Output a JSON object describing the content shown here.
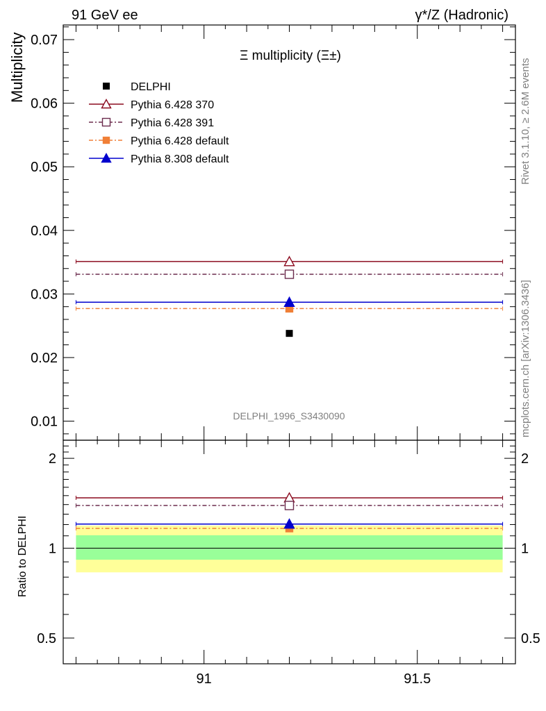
{
  "header": {
    "left": "91 GeV ee",
    "right": "γ*/Z (Hadronic)"
  },
  "side_text": {
    "rivet": "Rivet 3.1.10, ≥ 2.6M events",
    "mcplots": "mcplots.cern.ch [arXiv:1306.3436]"
  },
  "chart_data": {
    "type": "scatter",
    "title": "Ξ multiplicity (Ξ±)",
    "analysis_label": "DELPHI_1996_S3430090",
    "ylabel": "Multiplicity",
    "ratio_ylabel": "Ratio to DELPHI",
    "xlim": [
      90.67,
      91.73
    ],
    "ylim": [
      0.007,
      0.0723
    ],
    "ratio_ylim": [
      0.41,
      2.3
    ],
    "x_bin": [
      90.7,
      91.7
    ],
    "x_ticks": [
      {
        "v": 91,
        "label": "91"
      },
      {
        "v": 91.5,
        "label": "91.5"
      }
    ],
    "y_ticks": [
      {
        "v": 0.01,
        "label": "0.01"
      },
      {
        "v": 0.02,
        "label": "0.02"
      },
      {
        "v": 0.03,
        "label": "0.03"
      },
      {
        "v": 0.04,
        "label": "0.04"
      },
      {
        "v": 0.05,
        "label": "0.05"
      },
      {
        "v": 0.06,
        "label": "0.06"
      },
      {
        "v": 0.07,
        "label": "0.07"
      }
    ],
    "ratio_ticks": [
      {
        "v": 0.5,
        "label": "0.5"
      },
      {
        "v": 1,
        "label": "1"
      },
      {
        "v": 2,
        "label": "2"
      }
    ],
    "data": {
      "name": "DELPHI",
      "x": 91.2,
      "y": 0.0238,
      "color": "#000000",
      "ratio_band_1sigma": [
        0.915,
        1.105
      ],
      "ratio_band_2sigma": [
        0.83,
        1.19
      ]
    },
    "series": [
      {
        "name": "Pythia 6.428 370",
        "x": 91.2,
        "y": 0.0351,
        "ratio": 1.475,
        "color": "#8b0a1e",
        "dash": "",
        "marker": "triangle-open"
      },
      {
        "name": "Pythia 6.428 391",
        "x": 91.2,
        "y": 0.0331,
        "ratio": 1.39,
        "color": "#6b2c4d",
        "dash": "6,3,2,3",
        "marker": "square-open"
      },
      {
        "name": "Pythia 6.428 default",
        "x": 91.2,
        "y": 0.0277,
        "ratio": 1.165,
        "color": "#f07f36",
        "dash": "6,3,2,3",
        "marker": "square-filled"
      },
      {
        "name": "Pythia 8.308 default",
        "x": 91.2,
        "y": 0.0287,
        "ratio": 1.205,
        "color": "#0000cd",
        "dash": "",
        "marker": "triangle-filled"
      }
    ],
    "colors": {
      "band_1sigma": "#99ff99",
      "band_2sigma": "#ffff99"
    }
  }
}
